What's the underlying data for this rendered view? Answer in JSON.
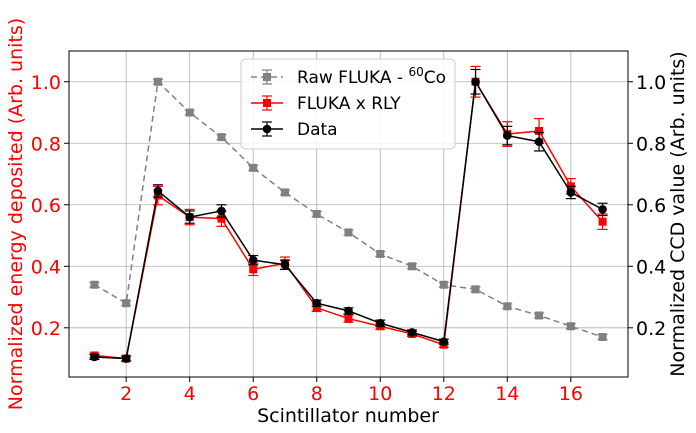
{
  "chart_data": {
    "type": "line",
    "xlabel": "Scintillator number",
    "ylabel_left": "Normalized energy deposited (Arb. units)",
    "ylabel_right": "Normalized CCD value (Arb. units)",
    "xlim": [
      0.2,
      17.8
    ],
    "ylim": [
      0.04,
      1.1
    ],
    "x_ticks": [
      2,
      4,
      6,
      8,
      10,
      12,
      14,
      16
    ],
    "y_ticks": [
      0.2,
      0.4,
      0.6,
      0.8,
      1.0
    ],
    "y_tick_labels": [
      "0.2",
      "0.4",
      "0.6",
      "0.8",
      "1.0"
    ],
    "grid": true,
    "legend_position": "top-center",
    "x": [
      1,
      2,
      3,
      4,
      5,
      6,
      7,
      8,
      9,
      10,
      11,
      12,
      13,
      14,
      15,
      16,
      17
    ],
    "series": [
      {
        "name": "Raw FLUKA - ",
        "name_sup": "60",
        "name_suffix": "Co",
        "color": "#808080",
        "style": "dashed",
        "marker": "square",
        "values": [
          0.34,
          0.28,
          1.0,
          0.9,
          0.82,
          0.72,
          0.64,
          0.57,
          0.51,
          0.44,
          0.4,
          0.34,
          0.325,
          0.27,
          0.24,
          0.205,
          0.17
        ],
        "errors": [
          0.008,
          0.008,
          0.008,
          0.008,
          0.008,
          0.008,
          0.008,
          0.008,
          0.008,
          0.008,
          0.008,
          0.008,
          0.008,
          0.008,
          0.008,
          0.008,
          0.008
        ]
      },
      {
        "name": "FLUKA x RLY",
        "color": "#ff0000",
        "style": "solid",
        "marker": "square",
        "values": [
          0.11,
          0.1,
          0.63,
          0.56,
          0.555,
          0.39,
          0.41,
          0.265,
          0.23,
          0.205,
          0.18,
          0.145,
          1.0,
          0.83,
          0.84,
          0.66,
          0.545
        ],
        "errors": [
          0.008,
          0.008,
          0.03,
          0.025,
          0.025,
          0.02,
          0.02,
          0.012,
          0.012,
          0.01,
          0.008,
          0.008,
          0.05,
          0.04,
          0.04,
          0.025,
          0.025
        ]
      },
      {
        "name": "Data",
        "color": "#000000",
        "style": "solid",
        "marker": "circle",
        "values": [
          0.105,
          0.1,
          0.645,
          0.56,
          0.58,
          0.42,
          0.405,
          0.28,
          0.255,
          0.215,
          0.185,
          0.155,
          1.0,
          0.825,
          0.805,
          0.64,
          0.585
        ],
        "errors": [
          0.008,
          0.008,
          0.02,
          0.02,
          0.02,
          0.015,
          0.015,
          0.01,
          0.01,
          0.01,
          0.008,
          0.008,
          0.04,
          0.03,
          0.03,
          0.02,
          0.02
        ]
      }
    ]
  }
}
